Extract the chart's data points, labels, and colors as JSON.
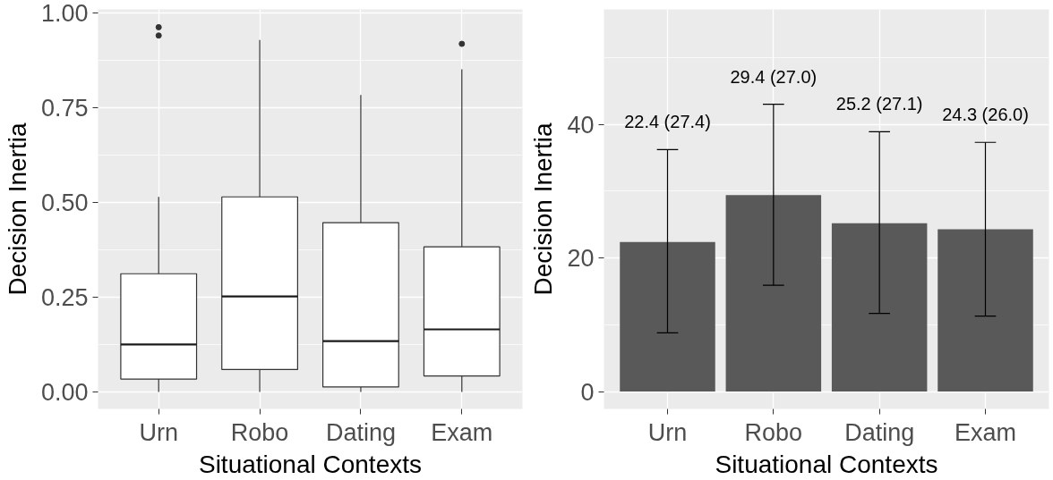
{
  "chart_data": [
    {
      "type": "box",
      "xlabel": "Situational Contexts",
      "ylabel": "Decision Inertia",
      "categories": [
        "Urn",
        "Robo",
        "Dating",
        "Exam"
      ],
      "ylim": [
        -0.045,
        1.01
      ],
      "yticks": [
        {
          "value": 0,
          "label": "0.00"
        },
        {
          "value": 0.25,
          "label": "0.25"
        },
        {
          "value": 0.5,
          "label": "0.50"
        },
        {
          "value": 0.75,
          "label": "0.75"
        },
        {
          "value": 1,
          "label": "1.00"
        }
      ],
      "grid": true,
      "boxes": [
        {
          "low": 0,
          "q1": 0.034,
          "median": 0.125,
          "q3": 0.312,
          "high": 0.515,
          "outliers": [
            0.941,
            0.963
          ]
        },
        {
          "low": 0,
          "q1": 0.059,
          "median": 0.252,
          "q3": 0.515,
          "high": 0.929
        },
        {
          "low": 0,
          "q1": 0.013,
          "median": 0.134,
          "q3": 0.447,
          "high": 0.784
        },
        {
          "low": 0,
          "q1": 0.042,
          "median": 0.165,
          "q3": 0.383,
          "high": 0.852,
          "outliers": [
            0.919
          ]
        }
      ]
    },
    {
      "type": "bar",
      "xlabel": "Situational Contexts",
      "ylabel": "Decision Inertia",
      "categories": [
        "Urn",
        "Robo",
        "Dating",
        "Exam"
      ],
      "values": [
        22.4,
        29.4,
        25.2,
        24.3
      ],
      "color": "#595959",
      "errors": [
        [
          8.8,
          36.2
        ],
        [
          15.9,
          43.0
        ],
        [
          11.7,
          38.9
        ],
        [
          11.3,
          37.3
        ]
      ],
      "ylim": [
        -2.6,
        57.2
      ],
      "yticks": [
        0,
        20,
        40
      ],
      "grid": true,
      "annotations": [
        "22.4 (27.4)",
        "29.4 (27.0)",
        "25.2 (27.1)",
        "24.3 (26.0)"
      ]
    }
  ]
}
